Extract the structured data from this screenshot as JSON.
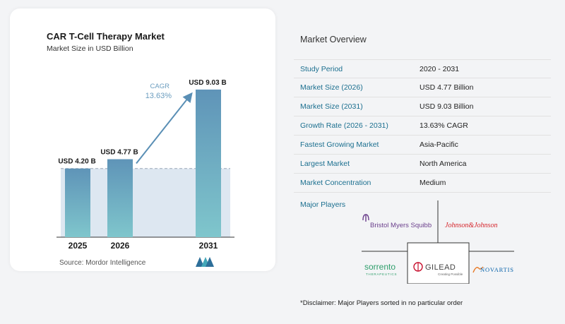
{
  "chart_data": {
    "type": "bar",
    "title": "CAR T-Cell Therapy Market",
    "subtitle": "Market Size in USD Billion",
    "categories": [
      "2025",
      "2026",
      "2031"
    ],
    "values": [
      4.2,
      4.77,
      9.03
    ],
    "data_labels": [
      "USD 4.20 B",
      "USD 4.77 B",
      "USD 9.03 B"
    ],
    "cagr_label": "CAGR",
    "cagr_value": "13.63%",
    "ylim": [
      0,
      9.5
    ],
    "colors": {
      "bar_top": "#5f94b8",
      "bar_bottom": "#7fc6cc",
      "shade": "#dde7f1",
      "arrow": "#5a8fb5",
      "cagr_text": "#6b9dbf"
    }
  },
  "source": "Source:  Mordor Intelligence",
  "overview": {
    "title": "Market Overview",
    "rows": [
      {
        "label": "Study Period",
        "value": "2020 - 2031"
      },
      {
        "label": "Market Size (2026)",
        "value": "USD 4.77 Billion"
      },
      {
        "label": "Market Size (2031)",
        "value": "USD 9.03 Billion"
      },
      {
        "label": "Growth Rate (2026 - 2031)",
        "value": "13.63% CAGR"
      },
      {
        "label": "Fastest Growing Market",
        "value": "Asia-Pacific"
      },
      {
        "label": "Largest Market",
        "value": "North America"
      },
      {
        "label": "Market Concentration",
        "value": "Medium"
      }
    ]
  },
  "players": {
    "title": "Major Players",
    "logos": [
      {
        "icon": "bristol-myers-squibb-logo",
        "text": "Bristol Myers Squibb",
        "color": "#6b3f8c"
      },
      {
        "icon": "johnson-and-johnson-logo",
        "text": "Johnson&Johnson",
        "color": "#d51f26"
      },
      {
        "icon": "sorrento-logo",
        "text": "sorrento",
        "sub": "THERAPEUTICS",
        "color": "#2e9e6b"
      },
      {
        "icon": "gilead-logo",
        "text": "GILEAD",
        "sub": "Creating Possible",
        "color": "#c8102e"
      },
      {
        "icon": "novartis-logo",
        "text": "NOVARTIS",
        "color": "#0460a9"
      }
    ]
  },
  "disclaimer": "*Disclaimer: Major Players sorted in no particular order"
}
